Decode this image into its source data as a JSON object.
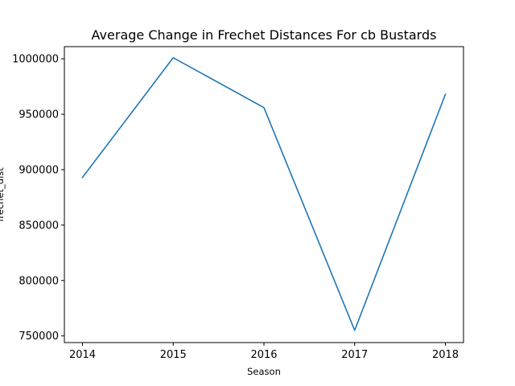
{
  "chart_data": {
    "type": "line",
    "title": "Average Change in Frechet Distances For cb Bustards",
    "xlabel": "Season",
    "ylabel": "frechet_dist",
    "categories": [
      "2014",
      "2015",
      "2016",
      "2017",
      "2018"
    ],
    "series": [
      {
        "values": [
          893000,
          1001000,
          956000,
          755000,
          968000
        ],
        "color": "#1f77b4"
      }
    ],
    "ylim": [
      744000,
      1011000
    ],
    "yticks": [
      750000,
      800000,
      850000,
      900000,
      950000,
      1000000
    ],
    "ytick_labels": [
      "750000",
      "800000",
      "850000",
      "900000",
      "950000",
      "1000000"
    ],
    "grid": false,
    "legend": "none"
  }
}
